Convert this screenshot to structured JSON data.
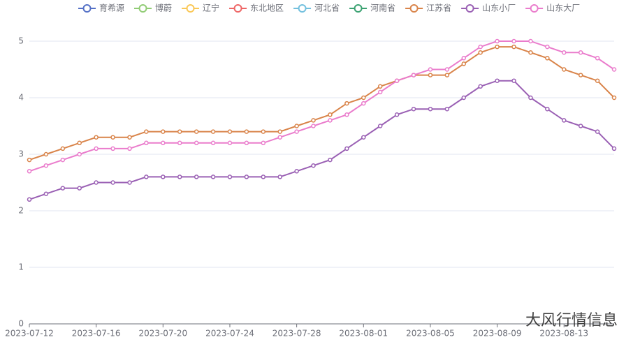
{
  "chart_data": {
    "type": "line",
    "watermark": "大风行情信息",
    "categories": [
      "2023-07-12",
      null,
      null,
      null,
      "2023-07-16",
      null,
      null,
      null,
      "2023-07-20",
      null,
      null,
      null,
      "2023-07-24",
      null,
      null,
      null,
      "2023-07-28",
      null,
      null,
      null,
      "2023-08-01",
      null,
      null,
      null,
      "2023-08-05",
      null,
      null,
      null,
      "2023-08-09",
      null,
      null,
      null,
      "2023-08-13",
      null,
      null,
      null
    ],
    "ylim": [
      0,
      5
    ],
    "yticks": [
      0,
      1,
      2,
      3,
      4,
      5
    ],
    "grid": true,
    "legend": "top",
    "series": [
      {
        "name": "育希源",
        "color": "#5470c6",
        "values": [
          null,
          null,
          null,
          null,
          null,
          null,
          null,
          null,
          null,
          null,
          null,
          null,
          null,
          null,
          null,
          null,
          null,
          null,
          null,
          null,
          null,
          null,
          null,
          null,
          null,
          null,
          null,
          null,
          null,
          null,
          null,
          null,
          null,
          null,
          null,
          null
        ]
      },
      {
        "name": "博蔚",
        "color": "#91cc75",
        "values": [
          null,
          null,
          null,
          null,
          null,
          null,
          null,
          null,
          null,
          null,
          null,
          null,
          null,
          null,
          null,
          null,
          null,
          null,
          null,
          null,
          null,
          null,
          null,
          null,
          null,
          null,
          null,
          null,
          null,
          null,
          null,
          null,
          null,
          null,
          null,
          null
        ]
      },
      {
        "name": "辽宁",
        "color": "#fac858",
        "values": [
          null,
          null,
          null,
          null,
          null,
          null,
          null,
          null,
          null,
          null,
          null,
          null,
          null,
          null,
          null,
          null,
          null,
          null,
          null,
          null,
          null,
          null,
          null,
          null,
          null,
          null,
          null,
          null,
          null,
          null,
          null,
          null,
          null,
          null,
          null,
          null
        ]
      },
      {
        "name": "东北地区",
        "color": "#ee6666",
        "values": [
          null,
          null,
          null,
          null,
          null,
          null,
          null,
          null,
          null,
          null,
          null,
          null,
          null,
          null,
          null,
          null,
          null,
          null,
          null,
          null,
          null,
          null,
          null,
          null,
          null,
          null,
          null,
          null,
          null,
          null,
          null,
          null,
          null,
          null,
          null,
          null
        ]
      },
      {
        "name": "河北省",
        "color": "#73c0de",
        "values": [
          null,
          null,
          null,
          null,
          null,
          null,
          null,
          null,
          null,
          null,
          null,
          null,
          null,
          null,
          null,
          null,
          null,
          null,
          null,
          null,
          null,
          null,
          null,
          null,
          null,
          null,
          null,
          null,
          null,
          null,
          null,
          null,
          null,
          null,
          null,
          null
        ]
      },
      {
        "name": "河南省",
        "color": "#3ba272",
        "values": [
          null,
          null,
          null,
          null,
          null,
          null,
          null,
          null,
          null,
          null,
          null,
          null,
          null,
          null,
          null,
          null,
          null,
          null,
          null,
          null,
          null,
          null,
          null,
          null,
          null,
          null,
          null,
          null,
          null,
          null,
          null,
          null,
          null,
          null,
          null,
          null
        ]
      },
      {
        "name": "江苏省",
        "color": "#d9844a",
        "values": [
          2.9,
          3.0,
          3.1,
          3.2,
          3.3,
          3.3,
          3.3,
          3.4,
          3.4,
          3.4,
          3.4,
          3.4,
          3.4,
          3.4,
          3.4,
          3.4,
          3.5,
          3.6,
          3.7,
          3.9,
          4.0,
          4.2,
          4.3,
          4.4,
          4.4,
          4.4,
          4.6,
          4.8,
          4.9,
          4.9,
          4.8,
          4.7,
          4.5,
          4.4,
          4.3,
          4.0
        ]
      },
      {
        "name": "山东小厂",
        "color": "#9a60b4",
        "values": [
          2.2,
          2.3,
          2.4,
          2.4,
          2.5,
          2.5,
          2.5,
          2.6,
          2.6,
          2.6,
          2.6,
          2.6,
          2.6,
          2.6,
          2.6,
          2.6,
          2.7,
          2.8,
          2.9,
          3.1,
          3.3,
          3.5,
          3.7,
          3.8,
          3.8,
          3.8,
          4.0,
          4.2,
          4.3,
          4.3,
          4.0,
          3.8,
          3.6,
          3.5,
          3.4,
          3.1
        ]
      },
      {
        "name": "山东大厂",
        "color": "#ea7ccc",
        "values": [
          2.7,
          2.8,
          2.9,
          3.0,
          3.1,
          3.1,
          3.1,
          3.2,
          3.2,
          3.2,
          3.2,
          3.2,
          3.2,
          3.2,
          3.2,
          3.3,
          3.4,
          3.5,
          3.6,
          3.7,
          3.9,
          4.1,
          4.3,
          4.4,
          4.5,
          4.5,
          4.7,
          4.9,
          5.0,
          5.0,
          5.0,
          4.9,
          4.8,
          4.8,
          4.7,
          4.5
        ]
      }
    ]
  }
}
